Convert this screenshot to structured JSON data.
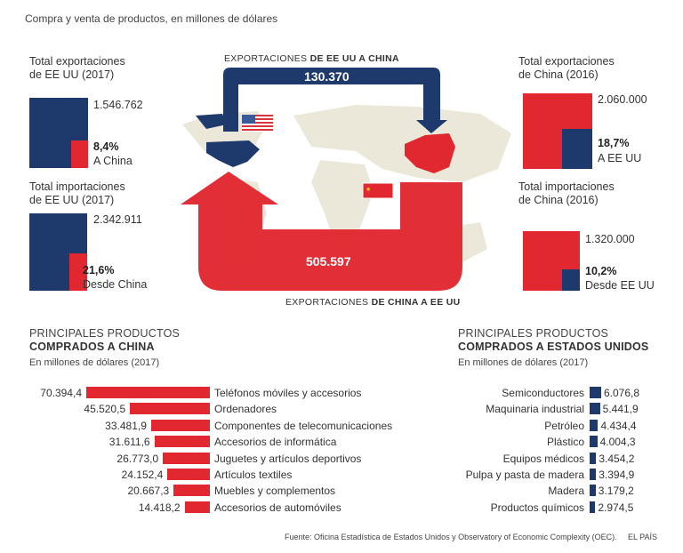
{
  "subtitle": "Compra y venta de productos, en millones de dólares",
  "colors": {
    "usa": "#1e3a6d",
    "china": "#e1272f",
    "map": "#ebe8da"
  },
  "us_exports": {
    "title_line1": "Total exportaciones",
    "title_line2": "de EE UU (2017)",
    "total": "1.546.762",
    "share": "8,4%",
    "share_label": "A China",
    "share_value": 8.4
  },
  "us_imports": {
    "title_line1": "Total importaciones",
    "title_line2": "de EE UU (2017)",
    "total": "2.342.911",
    "share": "21,6%",
    "share_label": "Desde China",
    "share_value": 21.6
  },
  "cn_exports": {
    "title_line1": "Total exportaciones",
    "title_line2": "de China (2016)",
    "total": "2.060.000",
    "share": "18,7%",
    "share_label": "A EE UU",
    "share_value": 18.7
  },
  "cn_imports": {
    "title_line1": "Total importaciones",
    "title_line2": "de China (2016)",
    "total": "1.320.000",
    "share": "10,2%",
    "share_label": "Desde EE UU",
    "share_value": 10.2
  },
  "flow_us_cn": {
    "label_plain": "EXPORTACIONES ",
    "label_bold": "DE EE UU A CHINA",
    "value": "130.370"
  },
  "flow_cn_us": {
    "label_plain": "EXPORTACIONES ",
    "label_bold": "DE CHINA A EE UU",
    "value": "505.597"
  },
  "chart_data": [
    {
      "type": "bar",
      "title_line1": "PRINCIPALES PRODUCTOS",
      "title_line2": "COMPRADOS A CHINA",
      "subtitle": "En millones de dólares (2017)",
      "categories": [
        "Teléfonos móviles y accesorios",
        "Ordenadores",
        "Componentes de telecomunicaciones",
        "Accesorios de informática",
        "Juguetes y artículos deportivos",
        "Artículos textiles",
        "Muebles y complementos",
        "Accesorios de automóviles"
      ],
      "values": [
        70394.4,
        45520.5,
        33481.9,
        31611.6,
        26773.0,
        24152.4,
        20667.3,
        14418.2
      ],
      "value_labels": [
        "70.394,4",
        "45.520,5",
        "33.481,9",
        "31.611,6",
        "26.773,0",
        "24.152,4",
        "20.667,3",
        "14.418,2"
      ],
      "color": "#e1272f"
    },
    {
      "type": "bar",
      "title_line1": "PRINCIPALES PRODUCTOS",
      "title_line2": "COMPRADOS A ESTADOS UNIDOS",
      "subtitle": "En millones de dólares (2017)",
      "categories": [
        "Semiconductores",
        "Maquinaria industrial",
        "Petróleo",
        "Plástico",
        "Equipos médicos",
        "Pulpa y pasta de madera",
        "Madera",
        "Productos químicos"
      ],
      "values": [
        6076.8,
        5441.9,
        4434.4,
        4004.3,
        3454.2,
        3394.9,
        3179.2,
        2974.5
      ],
      "value_labels": [
        "6.076,8",
        "5.441,9",
        "4.434,4",
        "4.004,3",
        "3.454,2",
        "3.394,9",
        "3.179,2",
        "2.974,5"
      ],
      "color": "#1e3a6d"
    }
  ],
  "footer": {
    "source": "Fuente: Oficina Estadística de Estados Unidos y Observatory of Economic Complexity (OEC).",
    "brand": "EL PAÍS"
  }
}
